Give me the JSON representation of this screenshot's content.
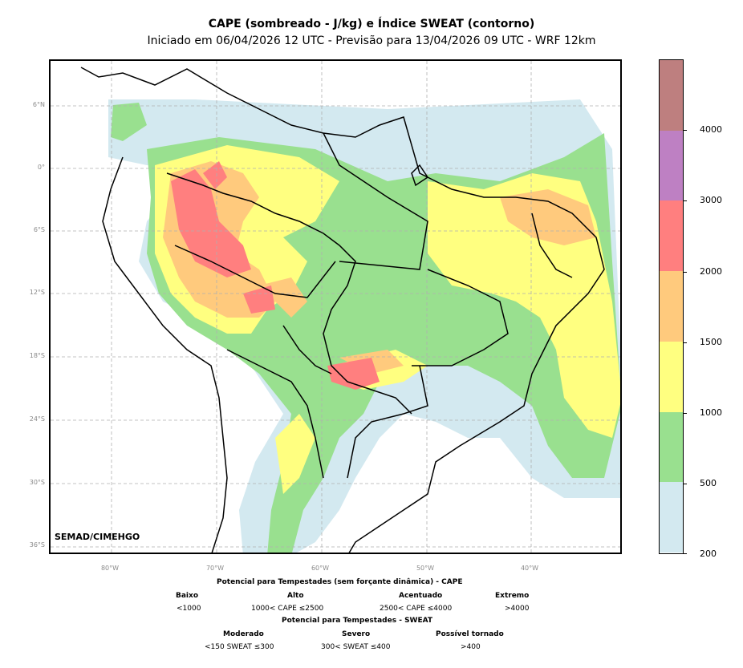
{
  "title": "CAPE (sombreado - J/kg) e Índice SWEAT (contorno)",
  "subtitle": "Iniciado em 06/04/2026 12 UTC - Previsão para 13/04/2026 09 UTC - WRF 12km",
  "credit": "SEMAD/CIMEHGO",
  "lat_ticks": [
    "6°N",
    "0°",
    "6°S",
    "12°S",
    "18°S",
    "24°S",
    "30°S",
    "36°S"
  ],
  "lon_ticks": [
    "80°W",
    "70°W",
    "60°W",
    "50°W",
    "40°W"
  ],
  "colorbar": {
    "labels": [
      "200",
      "500",
      "1000",
      "1500",
      "2000",
      "3000",
      "4000"
    ],
    "levels": [
      200,
      500,
      1000,
      1500,
      2000,
      3000,
      4000
    ],
    "colors": [
      "#d3e9f0",
      "#99e08f",
      "#ffff80",
      "#ffca7d",
      "#ff7f7f",
      "#be80c3",
      "#be7f7f"
    ]
  },
  "legend": {
    "cape_title": "Potencial para Tempestades (sem forçante dinâmica) - CAPE",
    "cape_cats": [
      {
        "name": "Baixo",
        "range": "<1000"
      },
      {
        "name": "Alto",
        "range": "1000< CAPE ≤2500"
      },
      {
        "name": "Acentuado",
        "range": "2500< CAPE ≤4000"
      },
      {
        "name": "Extremo",
        "range": ">4000"
      }
    ],
    "sweat_title": "Potencial para Tempestades - SWEAT",
    "sweat_cats": [
      {
        "name": "Moderado",
        "range": "<150 SWEAT ≤300"
      },
      {
        "name": "Severo",
        "range": "300< SWEAT ≤400"
      },
      {
        "name": "Possível tornado",
        "range": ">400"
      }
    ]
  }
}
